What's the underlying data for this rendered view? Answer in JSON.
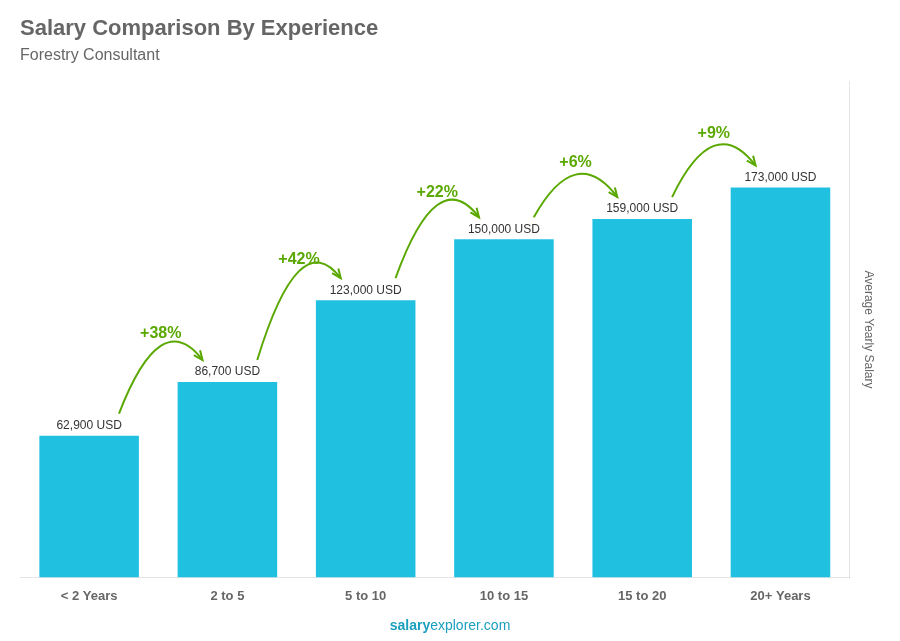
{
  "chart_data": {
    "type": "bar",
    "title": "Salary Comparison By Experience",
    "subtitle": "Forestry Consultant",
    "y_label": "Average Yearly Salary",
    "categories": [
      "< 2 Years",
      "2 to 5",
      "5 to 10",
      "10 to 15",
      "15 to 20",
      "20+ Years"
    ],
    "values": [
      62900,
      86700,
      123000,
      150000,
      159000,
      173000
    ],
    "value_labels": [
      "62,900 USD",
      "86,700 USD",
      "123,000 USD",
      "150,000 USD",
      "159,000 USD",
      "173,000 USD"
    ],
    "data_labels": true,
    "color": "#20c0e0",
    "ylim": [
      0,
      220000
    ],
    "grid": false,
    "tick_labels": "x",
    "annotations": [
      {
        "text": "+38%",
        "from": "< 2 Years",
        "to": "2 to 5"
      },
      {
        "text": "+42%",
        "from": "2 to 5",
        "to": "5 to 10"
      },
      {
        "text": "+22%",
        "from": "5 to 10",
        "to": "10 to 15"
      },
      {
        "text": "+6%",
        "from": "10 to 15",
        "to": "15 to 20"
      },
      {
        "text": "+9%",
        "from": "15 to 20",
        "to": "20+ Years"
      }
    ],
    "footer": [
      "salary",
      "explorer.com"
    ]
  }
}
